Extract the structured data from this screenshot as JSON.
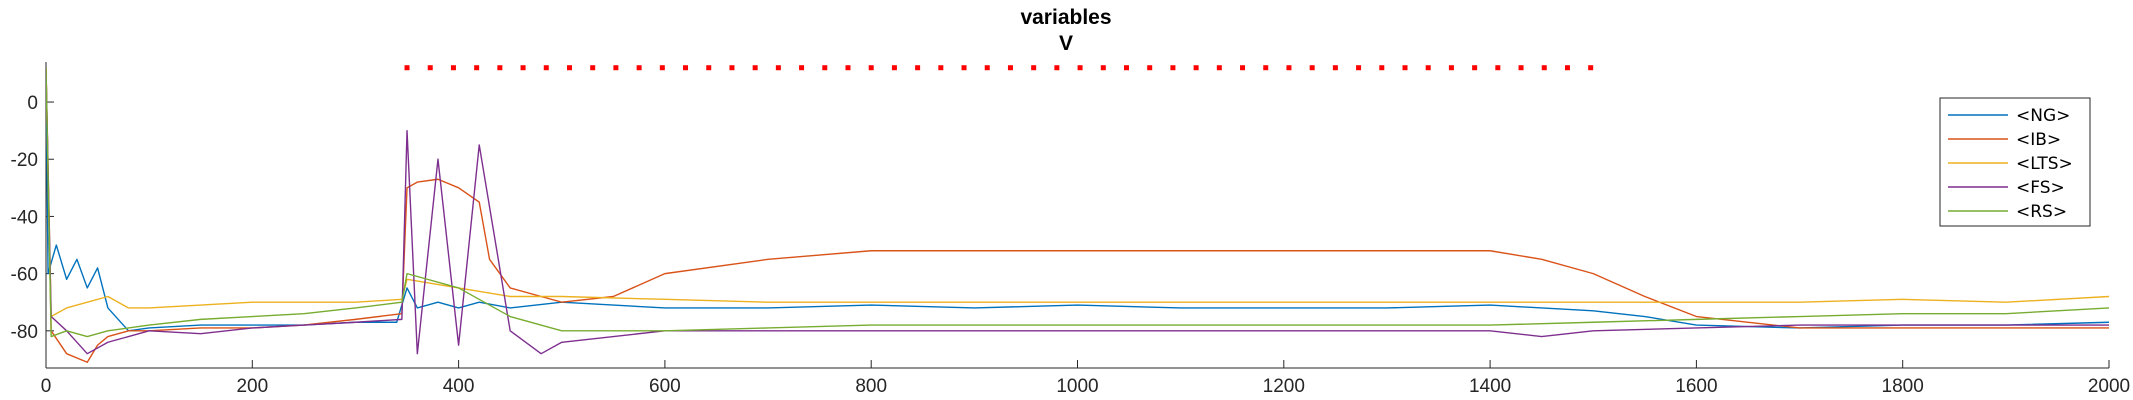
{
  "chart_data": {
    "type": "line",
    "title": "variables",
    "subtitle": "V",
    "xlabel": "",
    "ylabel": "",
    "xlim": [
      0,
      2000
    ],
    "ylim": [
      -93,
      14
    ],
    "grid": false,
    "legend_position": "top-right",
    "x_ticks": [
      0,
      200,
      400,
      600,
      800,
      1000,
      1200,
      1400,
      1600,
      1800,
      2000
    ],
    "y_ticks": [
      0,
      -20,
      -40,
      -60,
      -80
    ],
    "event_markers": {
      "color": "#ff0000",
      "y": 12,
      "x_start": 350,
      "x_end": 1500,
      "spacing": 22.5
    },
    "series": [
      {
        "name": "<NG>",
        "color": "#0072BD",
        "x": [
          0,
          2,
          10,
          20,
          30,
          40,
          50,
          60,
          80,
          100,
          150,
          200,
          250,
          300,
          340,
          350,
          360,
          380,
          400,
          420,
          450,
          500,
          600,
          700,
          800,
          900,
          1000,
          1100,
          1200,
          1300,
          1400,
          1500,
          1550,
          1600,
          1700,
          1800,
          1900,
          2000
        ],
        "y": [
          12,
          -60,
          -50,
          -62,
          -55,
          -65,
          -58,
          -72,
          -80,
          -79,
          -78,
          -78,
          -78,
          -77,
          -77,
          -65,
          -72,
          -70,
          -72,
          -70,
          -72,
          -70,
          -72,
          -72,
          -71,
          -72,
          -71,
          -72,
          -72,
          -72,
          -71,
          -73,
          -75,
          -78,
          -79,
          -78,
          -78,
          -77
        ]
      },
      {
        "name": "<IB>",
        "color": "#D95319",
        "x": [
          0,
          5,
          20,
          40,
          50,
          60,
          80,
          100,
          150,
          200,
          250,
          300,
          345,
          350,
          360,
          380,
          400,
          420,
          430,
          450,
          480,
          500,
          550,
          600,
          700,
          800,
          900,
          1000,
          1100,
          1200,
          1300,
          1400,
          1450,
          1500,
          1550,
          1600,
          1700,
          1800,
          1900,
          2000
        ],
        "y": [
          12,
          -80,
          -88,
          -91,
          -85,
          -82,
          -80,
          -80,
          -79,
          -79,
          -78,
          -76,
          -74,
          -30,
          -28,
          -27,
          -30,
          -35,
          -55,
          -65,
          -68,
          -70,
          -68,
          -60,
          -55,
          -52,
          -52,
          -52,
          -52,
          -52,
          -52,
          -52,
          -55,
          -60,
          -68,
          -75,
          -79,
          -79,
          -79,
          -79
        ]
      },
      {
        "name": "<LTS>",
        "color": "#EDB120",
        "x": [
          0,
          5,
          20,
          40,
          60,
          80,
          100,
          150,
          200,
          250,
          300,
          345,
          350,
          400,
          450,
          500,
          600,
          700,
          800,
          900,
          1000,
          1100,
          1200,
          1300,
          1400,
          1500,
          1600,
          1700,
          1800,
          1900,
          2000
        ],
        "y": [
          12,
          -75,
          -72,
          -70,
          -68,
          -72,
          -72,
          -71,
          -70,
          -70,
          -70,
          -69,
          -62,
          -65,
          -68,
          -68,
          -69,
          -70,
          -70,
          -70,
          -70,
          -70,
          -70,
          -70,
          -70,
          -70,
          -70,
          -70,
          -69,
          -70,
          -68
        ]
      },
      {
        "name": "<FS>",
        "color": "#7E2F8E",
        "x": [
          0,
          5,
          20,
          40,
          60,
          80,
          100,
          150,
          200,
          250,
          300,
          345,
          350,
          360,
          380,
          400,
          420,
          450,
          480,
          500,
          600,
          700,
          800,
          900,
          1000,
          1100,
          1200,
          1300,
          1400,
          1450,
          1500,
          1600,
          1700,
          1800,
          1900,
          2000
        ],
        "y": [
          12,
          -75,
          -80,
          -88,
          -84,
          -82,
          -80,
          -81,
          -79,
          -78,
          -77,
          -76,
          -10,
          -88,
          -20,
          -85,
          -15,
          -80,
          -88,
          -84,
          -80,
          -80,
          -80,
          -80,
          -80,
          -80,
          -80,
          -80,
          -80,
          -82,
          -80,
          -79,
          -78,
          -78,
          -78,
          -78
        ]
      },
      {
        "name": "<RS>",
        "color": "#77AC30",
        "x": [
          0,
          5,
          20,
          40,
          60,
          80,
          100,
          150,
          200,
          250,
          300,
          345,
          350,
          400,
          450,
          500,
          600,
          700,
          800,
          900,
          1000,
          1100,
          1200,
          1300,
          1400,
          1500,
          1600,
          1700,
          1800,
          1900,
          2000
        ],
        "y": [
          12,
          -82,
          -80,
          -82,
          -80,
          -79,
          -78,
          -76,
          -75,
          -74,
          -72,
          -70,
          -60,
          -65,
          -75,
          -80,
          -80,
          -79,
          -78,
          -78,
          -78,
          -78,
          -78,
          -78,
          -78,
          -77,
          -76,
          -75,
          -74,
          -74,
          -72
        ]
      }
    ]
  }
}
